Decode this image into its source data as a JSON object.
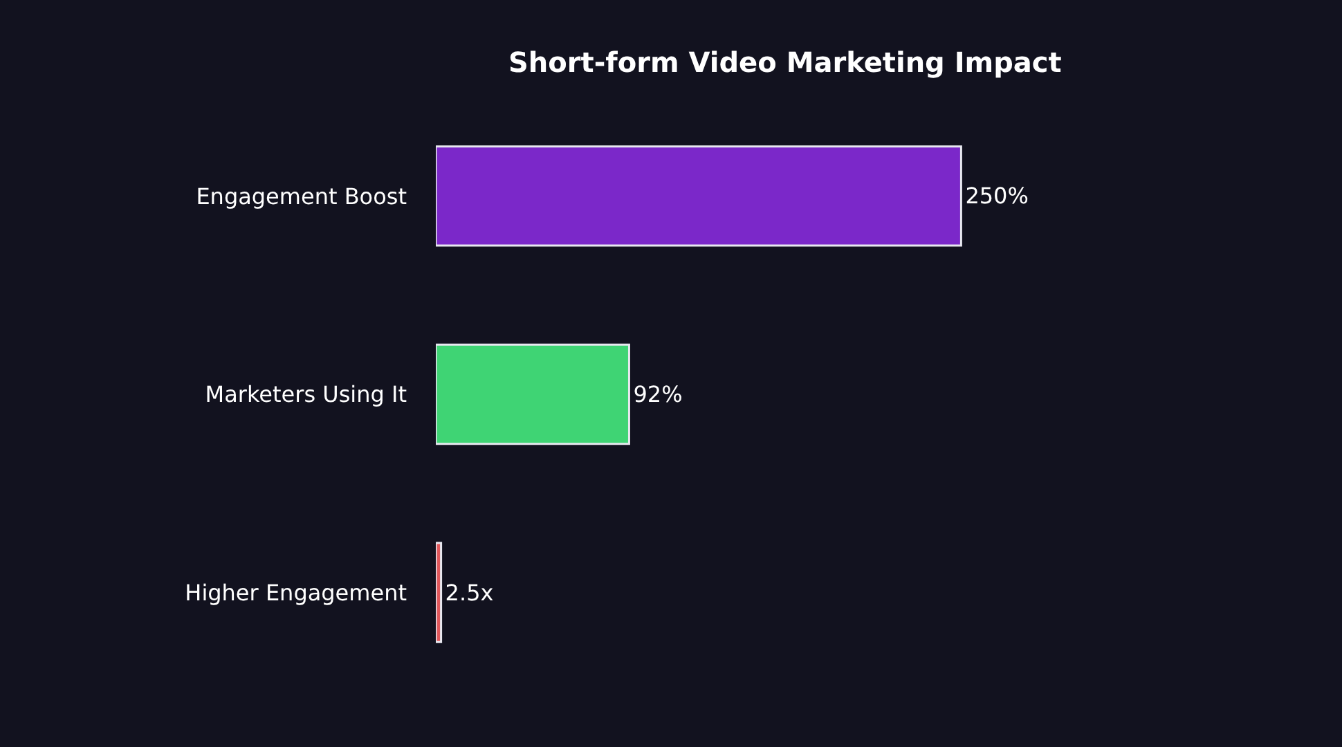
{
  "chart_data": {
    "type": "bar",
    "orientation": "horizontal",
    "title": "Short-form Video Marketing Impact",
    "categories": [
      "Engagement Boost",
      "Marketers Using It",
      "Higher Engagement"
    ],
    "values": [
      250,
      92,
      2.5
    ],
    "colors": [
      "#7b28c9",
      "#3fd474",
      "#e0575a"
    ],
    "value_labels": [
      "250%",
      "92%",
      "2.5x"
    ],
    "grid": false,
    "legend": false,
    "tick_labels": "y"
  }
}
